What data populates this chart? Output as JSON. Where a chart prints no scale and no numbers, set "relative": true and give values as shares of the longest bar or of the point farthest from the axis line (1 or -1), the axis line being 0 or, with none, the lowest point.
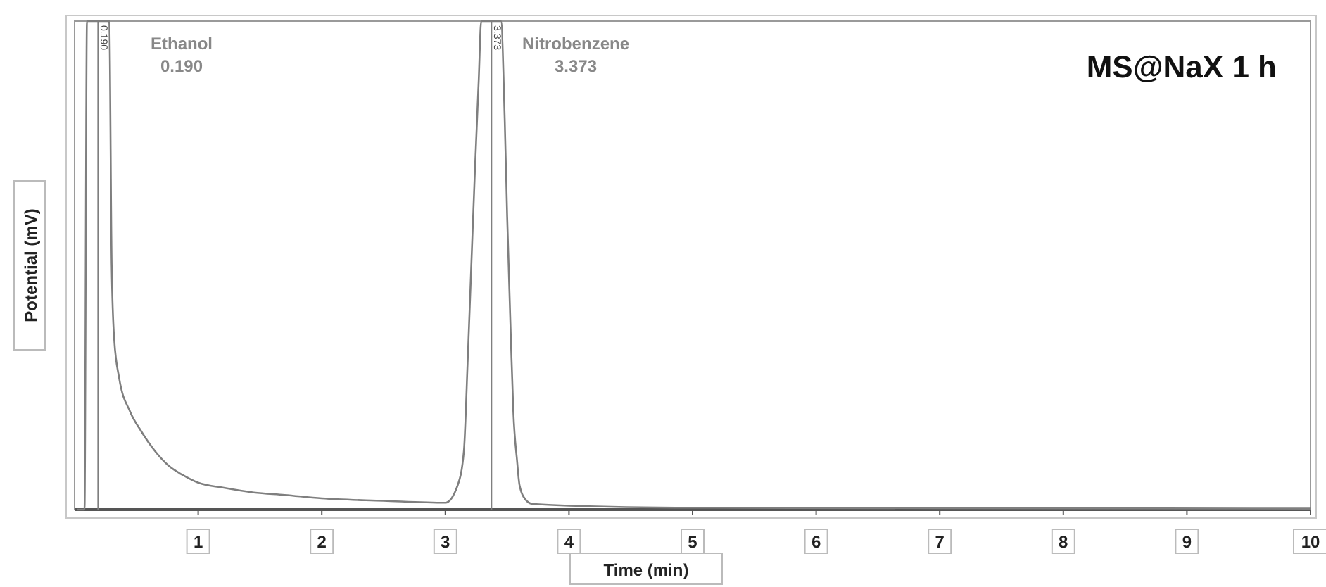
{
  "chart_data": {
    "type": "line",
    "title": "MS@NaX 1 h",
    "xlabel": "Time (min)",
    "ylabel": "Potential (mV)",
    "relative": true,
    "xlim": [
      0,
      10
    ],
    "xticks": [
      1,
      2,
      3,
      4,
      5,
      6,
      7,
      8,
      9,
      10
    ],
    "x": [
      0.02,
      0.08,
      0.1,
      0.28,
      0.3,
      0.32,
      0.36,
      0.45,
      0.54,
      0.65,
      0.76,
      0.88,
      1.0,
      1.2,
      1.45,
      1.7,
      2.0,
      2.5,
      3.0,
      3.1,
      3.15,
      3.18,
      3.21,
      3.24,
      3.27,
      3.29,
      3.45,
      3.48,
      3.5,
      3.53,
      3.55,
      3.58,
      3.6,
      3.65,
      3.7,
      4.0,
      5.0,
      7.0,
      10.0
    ],
    "series": [
      {
        "color": "#7f7f7f",
        "values": [
          0.0,
          0.0,
          1,
          1,
          0.5,
          0.35,
          0.27,
          0.2,
          0.16,
          0.12,
          0.09,
          0.07,
          0.055,
          0.045,
          0.035,
          0.03,
          0.023,
          0.018,
          0.014,
          0.05,
          0.12,
          0.3,
          0.5,
          0.7,
          0.88,
          1,
          1,
          0.8,
          0.6,
          0.35,
          0.2,
          0.1,
          0.05,
          0.02,
          0.012,
          0.008,
          0.004,
          0.003,
          0.002
        ]
      }
    ],
    "ref_lines": [
      {
        "axis": "x",
        "value": 0.19,
        "label": "0.190",
        "color": "#7f7f7f"
      },
      {
        "axis": "x",
        "value": 3.373,
        "label": "3.373",
        "color": "#7f7f7f"
      }
    ],
    "annotations": [
      "Ethanol\n0.190",
      "Nitrobenzene\n3.373"
    ],
    "grid": false
  }
}
